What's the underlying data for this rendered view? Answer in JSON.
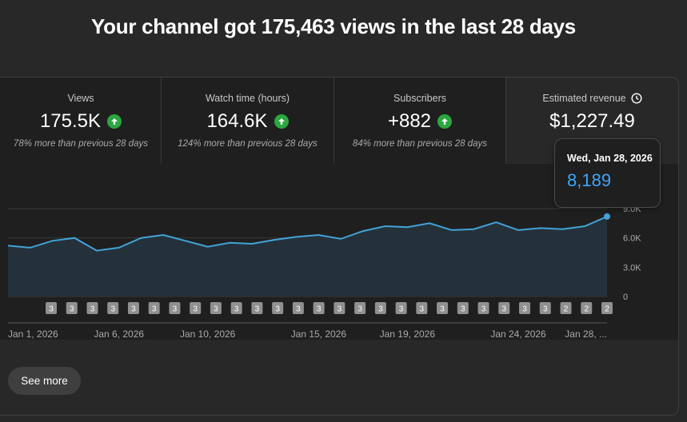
{
  "headline": "Your channel got 175,463 views in the last 28 days",
  "tiles": [
    {
      "label": "Views",
      "value": "175.5K",
      "comparison": "78% more than previous 28 days",
      "trend": "up"
    },
    {
      "label": "Watch time (hours)",
      "value": "164.6K",
      "comparison": "124% more than previous 28 days",
      "trend": "up"
    },
    {
      "label": "Subscribers",
      "value": "+882",
      "comparison": "84% more than previous 28 days",
      "trend": "up"
    },
    {
      "label": "Estimated revenue",
      "value": "$1,227.49",
      "comparison": "",
      "trend": "none"
    }
  ],
  "tooltip": {
    "date": "Wed, Jan 28, 2026",
    "value": "8,189"
  },
  "colors": {
    "accent": "#3ea6ff",
    "up": "#2ba640",
    "line": "#41a3d8",
    "fill": "#25313a"
  },
  "chart_data": {
    "type": "area",
    "title": "Views",
    "series": [
      {
        "name": "Views",
        "values": [
          5200,
          5000,
          5700,
          6000,
          4700,
          5000,
          6000,
          6300,
          5700,
          5100,
          5500,
          5400,
          5800,
          6100,
          6300,
          5900,
          6700,
          7200,
          7100,
          7500,
          6800,
          6900,
          7600,
          6800,
          7000,
          6900,
          7200,
          8189
        ]
      }
    ],
    "y_ticks": [
      "0",
      "3.0K",
      "6.0K",
      "9.0K"
    ],
    "ylim": [
      0,
      9000
    ],
    "x_labels": [
      "Jan 1, 2026",
      "Jan 6, 2026",
      "Jan 10, 2026",
      "Jan 15, 2026",
      "Jan 19, 2026",
      "Jan 24, 2026",
      "Jan 28, ..."
    ],
    "x_label_index": [
      0,
      5,
      9,
      14,
      18,
      23,
      27
    ],
    "markers": [
      "3",
      "3",
      "3",
      "3",
      "3",
      "3",
      "3",
      "3",
      "3",
      "3",
      "3",
      "3",
      "3",
      "3",
      "3",
      "3",
      "3",
      "3",
      "3",
      "3",
      "3",
      "3",
      "3",
      "3",
      "3",
      "2",
      "2",
      "2"
    ]
  },
  "see_more": "See more"
}
